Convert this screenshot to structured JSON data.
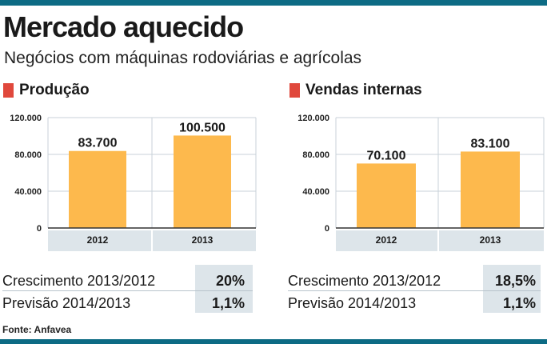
{
  "header": {
    "title": "Mercado aquecido",
    "subtitle": "Negócios com máquinas rodoviárias e agrícolas"
  },
  "colors": {
    "bar": "#fdb94d",
    "accent": "#e0483c",
    "band": "#0d6b84",
    "box": "#dde5ea",
    "grid": "#c8d2d8"
  },
  "chart_data": [
    {
      "type": "bar",
      "title": "Produção",
      "categories": [
        "2012",
        "2013"
      ],
      "values": [
        83700,
        100500
      ],
      "value_labels": [
        "83.700",
        "100.500"
      ],
      "ylim": [
        0,
        120000
      ],
      "yticks": [
        "0",
        "40.000",
        "80.000",
        "120.000"
      ],
      "grid": true
    },
    {
      "type": "bar",
      "title": "Vendas internas",
      "categories": [
        "2012",
        "2013"
      ],
      "values": [
        70100,
        83100
      ],
      "value_labels": [
        "70.100",
        "83.100"
      ],
      "ylim": [
        0,
        120000
      ],
      "yticks": [
        "0",
        "40.000",
        "80.000",
        "120.000"
      ],
      "grid": true
    }
  ],
  "stats": [
    {
      "growth_label": "Crescimento 2013/2012",
      "growth_value": "20%",
      "forecast_label": "Previsão 2014/2013",
      "forecast_value": "1,1%"
    },
    {
      "growth_label": "Crescimento 2013/2012",
      "growth_value": "18,5%",
      "forecast_label": "Previsão 2014/2013",
      "forecast_value": "1,1%"
    }
  ],
  "source": "Fonte: Anfavea"
}
